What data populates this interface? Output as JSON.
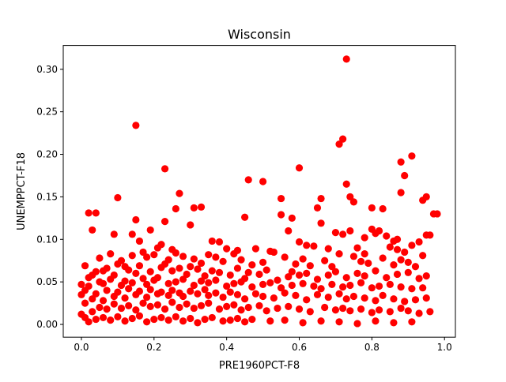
{
  "chart_data": {
    "type": "scatter",
    "title": "Wisconsin",
    "xlabel": "PRE1960PCT-F8",
    "ylabel": "UNEMPPCT-F18",
    "xlim": [
      -0.05,
      1.03
    ],
    "ylim": [
      -0.015,
      0.328
    ],
    "xticks": [
      0.0,
      0.2,
      0.4,
      0.6,
      0.8,
      1.0
    ],
    "xtick_labels": [
      "0.0",
      "0.2",
      "0.4",
      "0.6",
      "0.8",
      "1.0"
    ],
    "yticks": [
      0.0,
      0.05,
      0.1,
      0.15,
      0.2,
      0.25,
      0.3
    ],
    "ytick_labels": [
      "0.00",
      "0.05",
      "0.10",
      "0.15",
      "0.20",
      "0.25",
      "0.30"
    ],
    "grid": false,
    "legend": "none",
    "marker_color": "#ff0000",
    "series": [
      {
        "x": [
          0.73,
          0.15,
          0.72,
          0.71,
          0.73,
          0.91,
          0.23,
          0.6,
          0.88,
          0.33,
          0.46,
          0.5,
          0.89,
          0.27,
          0.74,
          0.95,
          0.75,
          0.1,
          0.55,
          0.66,
          0.88,
          0.94,
          0.26,
          0.31,
          0.83,
          0.97,
          0.8,
          0.02,
          0.04,
          0.15,
          0.23,
          0.3,
          0.45,
          0.55,
          0.57,
          0.58,
          0.65,
          0.66,
          0.7,
          0.72,
          0.74,
          0.78,
          0.8,
          0.81,
          0.82,
          0.84,
          0.86,
          0.87,
          0.93,
          0.95,
          0.96,
          0.98,
          0.03,
          0.09,
          0.14,
          0.16,
          0.19,
          0.22,
          0.25,
          0.36,
          0.38,
          0.4,
          0.43,
          0.48,
          0.52,
          0.6,
          0.62,
          0.64,
          0.68,
          0.76,
          0.78,
          0.85,
          0.87,
          0.89,
          0.91,
          0.0,
          0.01,
          0.03,
          0.05,
          0.06,
          0.08,
          0.11,
          0.12,
          0.14,
          0.17,
          0.18,
          0.2,
          0.21,
          0.24,
          0.26,
          0.28,
          0.31,
          0.33,
          0.35,
          0.37,
          0.39,
          0.42,
          0.44,
          0.47,
          0.5,
          0.53,
          0.56,
          0.59,
          0.61,
          0.63,
          0.67,
          0.69,
          0.71,
          0.75,
          0.77,
          0.79,
          0.83,
          0.86,
          0.88,
          0.9,
          0.92,
          0.94,
          0.01,
          0.02,
          0.04,
          0.07,
          0.09,
          0.1,
          0.13,
          0.15,
          0.16,
          0.19,
          0.22,
          0.23,
          0.25,
          0.27,
          0.29,
          0.3,
          0.32,
          0.34,
          0.36,
          0.38,
          0.41,
          0.43,
          0.45,
          0.46,
          0.49,
          0.51,
          0.54,
          0.57,
          0.58,
          0.6,
          0.62,
          0.65,
          0.68,
          0.7,
          0.73,
          0.76,
          0.78,
          0.81,
          0.84,
          0.87,
          0.9,
          0.93,
          0.95,
          0.0,
          0.02,
          0.05,
          0.06,
          0.08,
          0.11,
          0.12,
          0.14,
          0.17,
          0.18,
          0.2,
          0.21,
          0.24,
          0.26,
          0.28,
          0.31,
          0.33,
          0.35,
          0.37,
          0.4,
          0.42,
          0.44,
          0.47,
          0.5,
          0.52,
          0.55,
          0.58,
          0.61,
          0.64,
          0.66,
          0.69,
          0.72,
          0.74,
          0.77,
          0.8,
          0.82,
          0.85,
          0.88,
          0.91,
          0.94,
          0.0,
          0.01,
          0.03,
          0.04,
          0.06,
          0.07,
          0.09,
          0.1,
          0.12,
          0.13,
          0.15,
          0.16,
          0.18,
          0.19,
          0.21,
          0.22,
          0.24,
          0.25,
          0.27,
          0.28,
          0.3,
          0.32,
          0.34,
          0.35,
          0.37,
          0.39,
          0.41,
          0.43,
          0.45,
          0.48,
          0.5,
          0.53,
          0.56,
          0.59,
          0.62,
          0.65,
          0.68,
          0.71,
          0.73,
          0.75,
          0.78,
          0.81,
          0.83,
          0.86,
          0.89,
          0.92,
          0.95,
          0.01,
          0.03,
          0.05,
          0.07,
          0.09,
          0.11,
          0.13,
          0.15,
          0.17,
          0.19,
          0.21,
          0.23,
          0.25,
          0.27,
          0.29,
          0.31,
          0.33,
          0.35,
          0.38,
          0.4,
          0.42,
          0.44,
          0.46,
          0.49,
          0.51,
          0.54,
          0.57,
          0.6,
          0.63,
          0.67,
          0.7,
          0.72,
          0.74,
          0.77,
          0.8,
          0.82,
          0.85,
          0.88,
          0.9,
          0.93,
          0.96,
          0.02,
          0.04,
          0.06,
          0.08,
          0.1,
          0.12,
          0.14,
          0.16,
          0.18,
          0.2,
          0.22,
          0.24,
          0.26,
          0.28,
          0.3,
          0.32,
          0.34,
          0.36,
          0.39,
          0.41,
          0.43,
          0.45,
          0.47,
          0.52,
          0.56,
          0.61,
          0.66,
          0.71,
          0.76,
          0.81,
          0.86,
          0.91
        ],
        "y": [
          0.312,
          0.234,
          0.218,
          0.212,
          0.165,
          0.198,
          0.183,
          0.184,
          0.191,
          0.138,
          0.17,
          0.168,
          0.175,
          0.154,
          0.15,
          0.15,
          0.144,
          0.149,
          0.148,
          0.148,
          0.155,
          0.146,
          0.136,
          0.137,
          0.136,
          0.13,
          0.137,
          0.131,
          0.131,
          0.123,
          0.121,
          0.117,
          0.126,
          0.129,
          0.11,
          0.125,
          0.137,
          0.119,
          0.108,
          0.106,
          0.11,
          0.102,
          0.112,
          0.107,
          0.11,
          0.104,
          0.098,
          0.1,
          0.097,
          0.105,
          0.105,
          0.13,
          0.111,
          0.106,
          0.106,
          0.098,
          0.111,
          0.094,
          0.088,
          0.098,
          0.097,
          0.089,
          0.087,
          0.089,
          0.086,
          0.097,
          0.093,
          0.092,
          0.089,
          0.09,
          0.083,
          0.091,
          0.088,
          0.085,
          0.093,
          0.047,
          0.069,
          0.058,
          0.078,
          0.063,
          0.083,
          0.075,
          0.068,
          0.081,
          0.085,
          0.079,
          0.082,
          0.09,
          0.076,
          0.084,
          0.08,
          0.077,
          0.072,
          0.082,
          0.079,
          0.074,
          0.083,
          0.076,
          0.07,
          0.073,
          0.085,
          0.079,
          0.071,
          0.077,
          0.069,
          0.075,
          0.068,
          0.083,
          0.08,
          0.074,
          0.072,
          0.078,
          0.07,
          0.076,
          0.073,
          0.068,
          0.081,
          0.04,
          0.055,
          0.062,
          0.066,
          0.058,
          0.071,
          0.064,
          0.06,
          0.069,
          0.062,
          0.067,
          0.071,
          0.063,
          0.066,
          0.059,
          0.068,
          0.065,
          0.057,
          0.063,
          0.061,
          0.058,
          0.066,
          0.054,
          0.061,
          0.059,
          0.064,
          0.052,
          0.056,
          0.062,
          0.058,
          0.06,
          0.053,
          0.058,
          0.062,
          0.055,
          0.06,
          0.057,
          0.063,
          0.055,
          0.059,
          0.061,
          0.054,
          0.057,
          0.035,
          0.045,
          0.05,
          0.048,
          0.053,
          0.046,
          0.051,
          0.049,
          0.054,
          0.047,
          0.052,
          0.055,
          0.048,
          0.05,
          0.053,
          0.046,
          0.051,
          0.049,
          0.052,
          0.045,
          0.048,
          0.05,
          0.044,
          0.047,
          0.049,
          0.043,
          0.046,
          0.048,
          0.045,
          0.042,
          0.047,
          0.044,
          0.046,
          0.049,
          0.043,
          0.045,
          0.047,
          0.044,
          0.042,
          0.043,
          0.012,
          0.025,
          0.03,
          0.036,
          0.028,
          0.04,
          0.033,
          0.038,
          0.031,
          0.042,
          0.035,
          0.039,
          0.032,
          0.041,
          0.036,
          0.038,
          0.034,
          0.04,
          0.037,
          0.033,
          0.039,
          0.036,
          0.041,
          0.034,
          0.037,
          0.032,
          0.038,
          0.035,
          0.03,
          0.036,
          0.033,
          0.031,
          0.037,
          0.034,
          0.029,
          0.035,
          0.032,
          0.036,
          0.03,
          0.033,
          0.031,
          0.028,
          0.034,
          0.03,
          0.027,
          0.029,
          0.031,
          0.008,
          0.015,
          0.02,
          0.018,
          0.024,
          0.019,
          0.022,
          0.017,
          0.025,
          0.021,
          0.023,
          0.018,
          0.026,
          0.02,
          0.024,
          0.019,
          0.022,
          0.025,
          0.018,
          0.021,
          0.023,
          0.017,
          0.02,
          0.022,
          0.016,
          0.019,
          0.021,
          0.018,
          0.015,
          0.02,
          0.017,
          0.019,
          0.016,
          0.018,
          0.014,
          0.017,
          0.015,
          0.019,
          0.016,
          0.013,
          0.015,
          0.003,
          0.006,
          0.008,
          0.005,
          0.009,
          0.004,
          0.007,
          0.01,
          0.003,
          0.006,
          0.008,
          0.005,
          0.009,
          0.004,
          0.007,
          0.002,
          0.006,
          0.008,
          0.004,
          0.005,
          0.007,
          0.003,
          0.006,
          0.004,
          0.005,
          0.002,
          0.004,
          0.003,
          0.001,
          0.004,
          0.002,
          0.003
        ]
      }
    ]
  }
}
